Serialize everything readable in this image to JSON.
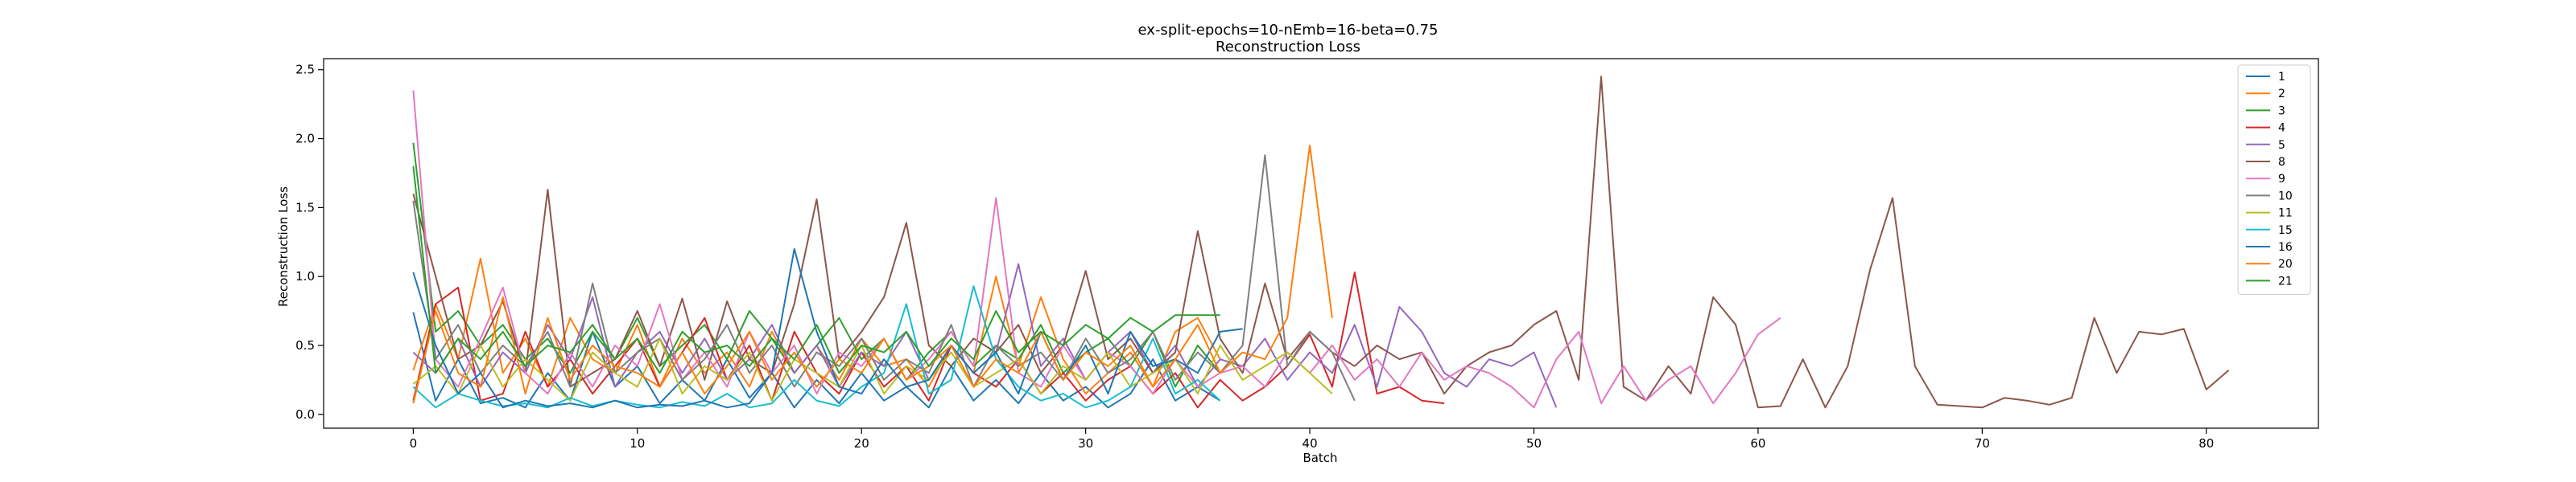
{
  "chart_data": {
    "type": "line",
    "title": "ex-split-epochs=10-nEmb=16-beta=0.75",
    "subtitle": "Reconstruction Loss",
    "xlabel": "Batch",
    "ylabel": "Reconstruction Loss",
    "xlim": [
      -4,
      85
    ],
    "ylim": [
      -0.1,
      2.58
    ],
    "xticks": [
      0,
      10,
      20,
      30,
      40,
      50,
      60,
      70,
      80
    ],
    "yticks": [
      0.0,
      0.5,
      1.0,
      1.5,
      2.0,
      2.5
    ],
    "legend_position": "top-right",
    "grid": false,
    "series": [
      {
        "name": "1",
        "color": "#1f77b4",
        "values": [
          0.74,
          0.1,
          0.4,
          0.08,
          0.12,
          0.05,
          0.3,
          0.1,
          0.6,
          0.2,
          0.35,
          0.08,
          0.25,
          0.1,
          0.4,
          0.12,
          0.3,
          0.05,
          0.25,
          0.08,
          0.3,
          0.1,
          0.2,
          0.05,
          0.35,
          0.1,
          0.25,
          0.08,
          0.3,
          0.1,
          0.2,
          0.05,
          0.15,
          0.4,
          0.1,
          0.2,
          0.1
        ]
      },
      {
        "name": "2",
        "color": "#ff7f0e",
        "values": [
          0.32,
          0.8,
          0.4,
          1.13,
          0.3,
          0.55,
          0.2,
          0.7,
          0.4,
          0.3,
          0.65,
          0.2,
          0.55,
          0.3,
          0.45,
          0.2,
          0.6,
          0.3,
          0.5,
          0.25,
          0.55,
          0.35,
          0.4,
          0.2,
          0.5,
          0.3,
          1.0,
          0.35,
          0.85,
          0.4,
          0.15,
          0.3,
          0.45,
          0.2,
          0.6,
          0.7,
          0.4
        ]
      },
      {
        "name": "3",
        "color": "#2ca02c",
        "values": [
          1.97,
          0.6,
          0.75,
          0.5,
          0.65,
          0.4,
          0.55,
          0.3,
          0.6,
          0.4,
          0.7,
          0.35,
          0.5,
          0.65,
          0.4,
          0.75,
          0.55,
          0.3,
          0.5,
          0.7,
          0.4,
          0.55,
          0.25,
          0.45,
          0.6,
          0.35,
          0.5,
          0.4,
          0.65,
          0.3,
          0.45,
          0.55,
          0.35,
          0.6,
          0.2,
          0.5,
          0.3
        ]
      },
      {
        "name": "4",
        "color": "#d62728",
        "values": [
          0.1,
          0.8,
          0.92,
          0.1,
          0.15,
          0.6,
          0.2,
          0.4,
          0.15,
          0.35,
          0.55,
          0.2,
          0.45,
          0.7,
          0.25,
          0.5,
          0.1,
          0.6,
          0.3,
          0.15,
          0.45,
          0.2,
          0.35,
          0.1,
          0.5,
          0.3,
          0.2,
          0.4,
          0.15,
          0.3,
          0.1,
          0.25,
          0.35,
          0.15,
          0.3,
          0.05,
          0.25,
          0.1,
          0.2,
          0.35,
          0.58,
          0.2,
          1.03,
          0.15,
          0.2,
          0.1,
          0.08
        ]
      },
      {
        "name": "5",
        "color": "#9467bd",
        "values": [
          0.45,
          0.3,
          0.55,
          0.2,
          0.45,
          0.3,
          0.65,
          0.4,
          0.85,
          0.2,
          0.45,
          0.6,
          0.3,
          0.55,
          0.25,
          0.4,
          0.65,
          0.3,
          0.5,
          0.2,
          0.45,
          0.35,
          0.6,
          0.25,
          0.5,
          0.3,
          0.45,
          1.09,
          0.35,
          0.55,
          0.25,
          0.45,
          0.6,
          0.3,
          0.5,
          0.2,
          0.4,
          0.35,
          0.55,
          0.25,
          0.45,
          0.3,
          0.65,
          0.2,
          0.78,
          0.6,
          0.3,
          0.2,
          0.4,
          0.35,
          0.45,
          0.05
        ]
      },
      {
        "name": "8",
        "color": "#8c564b",
        "values": [
          1.6,
          1.0,
          0.4,
          0.5,
          0.82,
          0.3,
          1.63,
          0.2,
          0.3,
          0.4,
          0.75,
          0.35,
          0.84,
          0.25,
          0.82,
          0.4,
          0.3,
          0.8,
          1.56,
          0.4,
          0.6,
          0.85,
          1.39,
          0.5,
          0.35,
          0.55,
          0.45,
          0.65,
          0.3,
          0.5,
          1.04,
          0.4,
          0.55,
          0.3,
          0.45,
          1.33,
          0.55,
          0.3,
          0.95,
          0.4,
          0.6,
          0.45,
          0.35,
          0.5,
          0.4,
          0.45,
          0.15,
          0.35,
          0.45,
          0.5,
          0.65,
          0.75,
          0.25,
          2.45,
          0.2,
          0.1,
          0.35,
          0.15,
          0.85,
          0.65,
          0.05,
          0.06,
          0.4,
          0.05,
          0.35,
          1.05,
          1.57,
          0.35,
          0.07,
          0.06,
          0.05,
          0.12,
          0.1,
          0.07,
          0.12,
          0.7,
          0.3,
          0.6,
          0.58,
          0.62,
          0.18,
          0.32
        ]
      },
      {
        "name": "9",
        "color": "#e377c2",
        "values": [
          2.35,
          0.4,
          0.2,
          0.55,
          0.92,
          0.3,
          0.15,
          0.45,
          0.2,
          0.5,
          0.35,
          0.8,
          0.25,
          0.45,
          0.2,
          0.6,
          0.3,
          0.5,
          0.15,
          0.45,
          0.35,
          0.55,
          0.25,
          0.4,
          0.6,
          0.35,
          1.57,
          0.3,
          0.2,
          0.5,
          0.25,
          0.45,
          0.35,
          0.15,
          0.4,
          0.2,
          0.3,
          0.35,
          0.2,
          0.45,
          0.3,
          0.5,
          0.25,
          0.4,
          0.2,
          0.45,
          0.25,
          0.35,
          0.3,
          0.2,
          0.05,
          0.4,
          0.6,
          0.08,
          0.35,
          0.1,
          0.25,
          0.35,
          0.08,
          0.3,
          0.58,
          0.7
        ]
      },
      {
        "name": "10",
        "color": "#7f7f7f",
        "values": [
          1.55,
          0.4,
          0.65,
          0.3,
          0.5,
          0.35,
          0.6,
          0.2,
          0.95,
          0.3,
          0.45,
          0.55,
          0.25,
          0.4,
          0.65,
          0.3,
          0.5,
          0.2,
          0.45,
          0.35,
          0.55,
          0.25,
          0.4,
          0.3,
          0.65,
          0.2,
          0.5,
          0.35,
          0.45,
          0.25,
          0.55,
          0.3,
          0.4,
          0.6,
          0.25,
          0.45,
          0.3,
          0.5,
          1.88,
          0.35,
          0.6,
          0.45,
          0.1
        ]
      },
      {
        "name": "11",
        "color": "#bcbd22",
        "values": [
          0.22,
          0.35,
          0.15,
          0.5,
          0.2,
          0.4,
          0.25,
          0.1,
          0.45,
          0.3,
          0.2,
          0.55,
          0.15,
          0.35,
          0.25,
          0.45,
          0.1,
          0.4,
          0.3,
          0.2,
          0.5,
          0.15,
          0.35,
          0.25,
          0.45,
          0.2,
          0.3,
          0.4,
          0.15,
          0.35,
          0.25,
          0.45,
          0.2,
          0.3,
          0.4,
          0.15,
          0.5,
          0.25,
          0.35,
          0.45,
          0.3,
          0.15
        ]
      },
      {
        "name": "15",
        "color": "#17becf",
        "values": [
          0.2,
          0.05,
          0.15,
          0.1,
          0.06,
          0.08,
          0.05,
          0.12,
          0.06,
          0.1,
          0.07,
          0.05,
          0.09,
          0.06,
          0.15,
          0.05,
          0.08,
          0.25,
          0.1,
          0.06,
          0.2,
          0.3,
          0.8,
          0.15,
          0.25,
          0.93,
          0.4,
          0.2,
          0.1,
          0.15,
          0.05,
          0.1,
          0.2,
          0.55,
          0.15,
          0.25,
          0.1
        ]
      },
      {
        "name": "16",
        "color": "#1f77b4",
        "values": [
          1.03,
          0.5,
          0.15,
          0.3,
          0.05,
          0.1,
          0.06,
          0.08,
          0.05,
          0.1,
          0.05,
          0.07,
          0.06,
          0.1,
          0.05,
          0.08,
          0.3,
          1.2,
          0.6,
          0.2,
          0.15,
          0.4,
          0.2,
          0.25,
          0.5,
          0.3,
          0.45,
          0.15,
          0.6,
          0.25,
          0.5,
          0.15,
          0.6,
          0.35,
          0.4,
          0.3,
          0.6,
          0.62
        ]
      },
      {
        "name": "20",
        "color": "#ff7f0e",
        "values": [
          0.08,
          0.75,
          0.3,
          0.2,
          0.85,
          0.15,
          0.7,
          0.25,
          0.5,
          0.35,
          0.3,
          0.2,
          0.45,
          0.15,
          0.35,
          0.6,
          0.25,
          0.45,
          0.2,
          0.4,
          0.3,
          0.55,
          0.25,
          0.35,
          0.5,
          0.2,
          0.4,
          0.3,
          0.6,
          0.25,
          0.45,
          0.35,
          0.5,
          0.2,
          0.4,
          0.65,
          0.3,
          0.45,
          0.4,
          0.7,
          1.95,
          0.7
        ]
      },
      {
        "name": "21",
        "color": "#2ca02c",
        "values": [
          1.8,
          0.3,
          0.55,
          0.4,
          0.6,
          0.35,
          0.5,
          0.45,
          0.65,
          0.4,
          0.55,
          0.3,
          0.6,
          0.45,
          0.5,
          0.35,
          0.55,
          0.4,
          0.65,
          0.3,
          0.5,
          0.45,
          0.6,
          0.35,
          0.55,
          0.4,
          0.75,
          0.45,
          0.6,
          0.5,
          0.65,
          0.55,
          0.7,
          0.6,
          0.72,
          0.72,
          0.72
        ]
      }
    ]
  }
}
